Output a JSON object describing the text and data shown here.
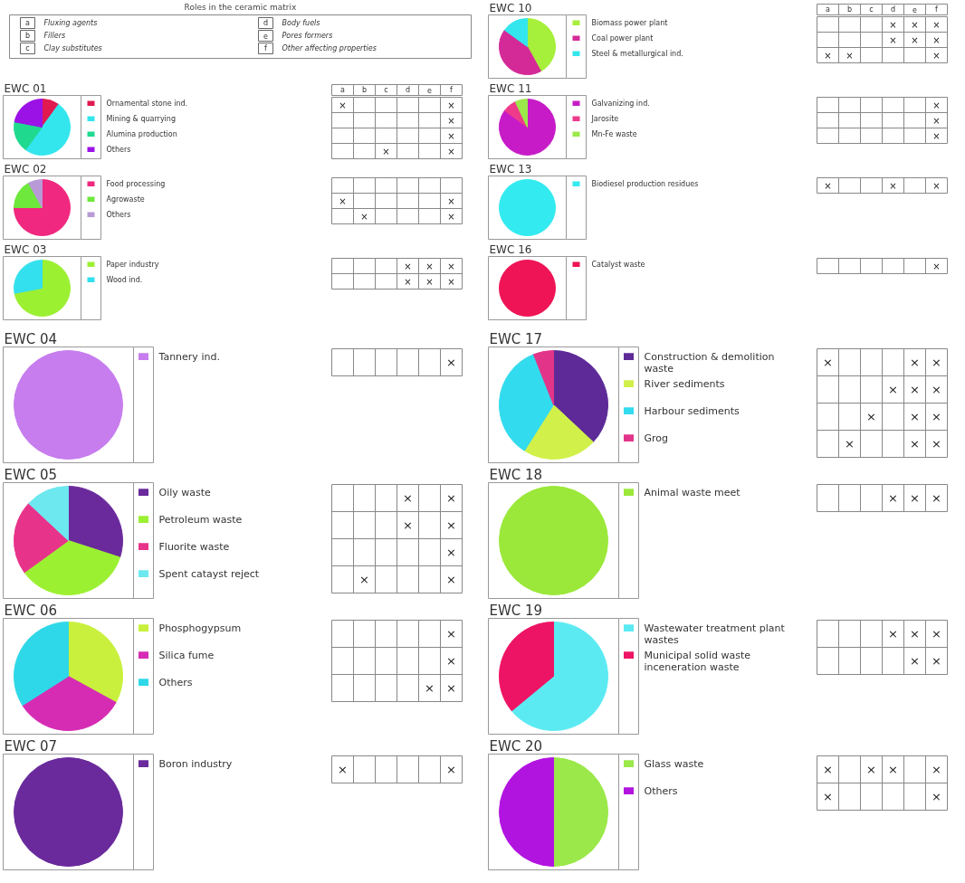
{
  "chart_data": [
    {
      "type": "other",
      "title": "Roles in the ceramic matrix",
      "annotations": [
        "a",
        "Fluxing agents",
        "b",
        "Fillers",
        "c",
        "Clay substitutes",
        "d",
        "Body fuels",
        "e",
        "Pores formers",
        "f",
        "Other affecting properties"
      ]
    },
    {
      "type": "pie",
      "title": "EWC 10",
      "legend": "right",
      "categories": [
        "Biomass power plant",
        "Coal power plant",
        "Steel & metallurgical ind."
      ],
      "values": [
        42,
        43,
        15
      ],
      "colors": [
        "#a6ef3a",
        "#d42a98",
        "#33e6ee"
      ]
    },
    {
      "type": "other",
      "categories": [
        "a",
        "b",
        "c",
        "d",
        "e",
        "f"
      ],
      "cell_labels": [
        [
          null,
          null,
          null,
          "×",
          "×",
          "×"
        ],
        [
          null,
          null,
          null,
          "×",
          "×",
          "×"
        ],
        [
          "×",
          "×",
          null,
          null,
          null,
          "×"
        ]
      ]
    },
    {
      "type": "pie",
      "title": "EWC 01",
      "legend": "right",
      "categories": [
        "Ornamental stone ind.",
        "Mining & quarrying",
        "Alumina production",
        "Others"
      ],
      "values": [
        10,
        50,
        18,
        22
      ],
      "colors": [
        "#e0194f",
        "#33e6ee",
        "#1fd98f",
        "#9b12e6"
      ]
    },
    {
      "type": "other",
      "categories": [
        "a",
        "b",
        "c",
        "d",
        "e",
        "f"
      ],
      "cell_labels": [
        [
          "×",
          null,
          null,
          null,
          null,
          "×"
        ],
        [
          null,
          null,
          null,
          null,
          null,
          "×"
        ],
        [
          null,
          null,
          null,
          null,
          null,
          "×"
        ],
        [
          null,
          null,
          "×",
          null,
          null,
          "×"
        ]
      ]
    },
    {
      "type": "pie",
      "title": "EWC 11",
      "legend": "right",
      "categories": [
        "Galvanizing ind.",
        "Jarosite",
        "Mn-Fe waste"
      ],
      "values": [
        85,
        8,
        7
      ],
      "colors": [
        "#c61bc6",
        "#ee3a8a",
        "#9ae84a"
      ]
    },
    {
      "type": "other",
      "cell_labels": [
        [
          null,
          null,
          null,
          null,
          null,
          "×"
        ],
        [
          null,
          null,
          null,
          null,
          null,
          "×"
        ],
        [
          null,
          null,
          null,
          null,
          null,
          "×"
        ]
      ]
    },
    {
      "type": "pie",
      "title": "EWC 02",
      "legend": "right",
      "categories": [
        "Food processing",
        "Agrowaste",
        "Others"
      ],
      "values": [
        75,
        17,
        8
      ],
      "colors": [
        "#f0287f",
        "#6ee83c",
        "#b89ad6"
      ]
    },
    {
      "type": "other",
      "cell_labels": [
        [
          null,
          null,
          null,
          null,
          null,
          null
        ],
        [
          "×",
          null,
          null,
          null,
          null,
          "×"
        ],
        [
          null,
          "×",
          null,
          null,
          null,
          "×"
        ]
      ]
    },
    {
      "type": "pie",
      "title": "EWC 13",
      "legend": "right",
      "categories": [
        "Biodiesel production residues"
      ],
      "values": [
        100
      ],
      "colors": [
        "#33eaf0"
      ]
    },
    {
      "type": "other",
      "cell_labels": [
        [
          "×",
          null,
          null,
          "×",
          null,
          "×"
        ]
      ]
    },
    {
      "type": "pie",
      "title": "EWC 03",
      "legend": "right",
      "categories": [
        "Paper industry",
        "Wood ind."
      ],
      "values": [
        72,
        28
      ],
      "colors": [
        "#9cf032",
        "#33e0ee"
      ]
    },
    {
      "type": "other",
      "cell_labels": [
        [
          null,
          null,
          null,
          "×",
          "×",
          "×"
        ],
        [
          null,
          null,
          null,
          "×",
          "×",
          "×"
        ]
      ]
    },
    {
      "type": "pie",
      "title": "EWC 16",
      "legend": "right",
      "categories": [
        "Catalyst waste"
      ],
      "values": [
        100
      ],
      "colors": [
        "#ee1455"
      ]
    },
    {
      "type": "other",
      "cell_labels": [
        [
          null,
          null,
          null,
          null,
          null,
          "×"
        ]
      ]
    },
    {
      "type": "pie",
      "title": "EWC 04",
      "legend": "right",
      "categories": [
        "Tannery ind."
      ],
      "values": [
        100
      ],
      "colors": [
        "#c77ded"
      ]
    },
    {
      "type": "other",
      "cell_labels": [
        [
          null,
          null,
          null,
          null,
          null,
          "×"
        ]
      ]
    },
    {
      "type": "pie",
      "title": "EWC 17",
      "legend": "right",
      "categories": [
        "Construction & demolition waste",
        "River sediments",
        "Harbour sediments",
        "Grog"
      ],
      "values": [
        37,
        22,
        35,
        6
      ],
      "colors": [
        "#5d2a98",
        "#d2f04a",
        "#33dbee",
        "#e2358a"
      ]
    },
    {
      "type": "other",
      "cell_labels": [
        [
          "×",
          null,
          null,
          null,
          "×",
          "×"
        ],
        [
          null,
          null,
          null,
          "×",
          "×",
          "×"
        ],
        [
          null,
          null,
          "×",
          null,
          "×",
          "×"
        ],
        [
          null,
          "×",
          null,
          null,
          "×",
          "×"
        ]
      ]
    },
    {
      "type": "pie",
      "title": "EWC 05",
      "legend": "right",
      "categories": [
        "Oily waste",
        "Petroleum waste",
        "Fluorite waste",
        "Spent catayst reject"
      ],
      "values": [
        30,
        35,
        22,
        13
      ],
      "colors": [
        "#6a2a9c",
        "#9cf032",
        "#e8338a",
        "#6de8ef"
      ]
    },
    {
      "type": "other",
      "cell_labels": [
        [
          null,
          null,
          null,
          "×",
          null,
          "×"
        ],
        [
          null,
          null,
          null,
          "×",
          null,
          "×"
        ],
        [
          null,
          null,
          null,
          null,
          null,
          "×"
        ],
        [
          null,
          "×",
          null,
          null,
          null,
          "×"
        ]
      ]
    },
    {
      "type": "pie",
      "title": "EWC 18",
      "legend": "right",
      "categories": [
        "Animal waste meet"
      ],
      "values": [
        100
      ],
      "colors": [
        "#9be83a"
      ]
    },
    {
      "type": "other",
      "cell_labels": [
        [
          null,
          null,
          null,
          "×",
          "×",
          "×"
        ]
      ]
    },
    {
      "type": "pie",
      "title": "EWC 06",
      "legend": "right",
      "categories": [
        "Phosphogypsum",
        "Silica fume",
        "Others"
      ],
      "values": [
        33,
        33,
        34
      ],
      "colors": [
        "#c8f03c",
        "#d62cb4",
        "#2fd8e8"
      ]
    },
    {
      "type": "other",
      "cell_labels": [
        [
          null,
          null,
          null,
          null,
          null,
          "×"
        ],
        [
          null,
          null,
          null,
          null,
          null,
          "×"
        ],
        [
          null,
          null,
          null,
          null,
          "×",
          "×"
        ]
      ]
    },
    {
      "type": "pie",
      "title": "EWC 19",
      "legend": "right",
      "categories": [
        "Wastewater treatment plant wastes",
        "Municipal solid waste inceneration waste"
      ],
      "values": [
        64,
        36
      ],
      "colors": [
        "#5ceaf2",
        "#ee1465"
      ]
    },
    {
      "type": "other",
      "cell_labels": [
        [
          null,
          null,
          null,
          "×",
          "×",
          "×"
        ],
        [
          null,
          null,
          null,
          null,
          "×",
          "×"
        ]
      ]
    },
    {
      "type": "pie",
      "title": "EWC 07",
      "legend": "right",
      "categories": [
        "Boron industry"
      ],
      "values": [
        100
      ],
      "colors": [
        "#6a2a9c"
      ]
    },
    {
      "type": "other",
      "cell_labels": [
        [
          "×",
          null,
          null,
          null,
          null,
          "×"
        ]
      ]
    },
    {
      "type": "pie",
      "title": "EWC 20",
      "legend": "right",
      "categories": [
        "Glass waste",
        "Others"
      ],
      "values": [
        50,
        50
      ],
      "colors": [
        "#9be84a",
        "#b214e0"
      ]
    },
    {
      "type": "other",
      "cell_labels": [
        [
          "×",
          null,
          "×",
          "×",
          null,
          "×"
        ],
        [
          "×",
          null,
          null,
          null,
          null,
          "×"
        ]
      ]
    }
  ]
}
